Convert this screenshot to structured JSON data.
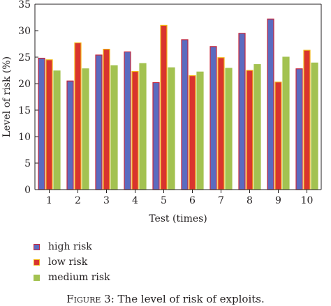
{
  "chart_data": {
    "type": "bar",
    "title": "",
    "xlabel": "Test (times)",
    "ylabel": "Level of risk (%)",
    "ylim": [
      0,
      35
    ],
    "yticks": [
      0,
      5,
      10,
      15,
      20,
      25,
      30,
      35
    ],
    "categories": [
      "1",
      "2",
      "3",
      "4",
      "5",
      "6",
      "7",
      "8",
      "9",
      "10"
    ],
    "grid": false,
    "legend_position": "bottom-left",
    "series": [
      {
        "name": "high risk",
        "fill": "#5b6bc0",
        "stroke": "#c8273c",
        "values": [
          24.8,
          20.5,
          25.4,
          26.0,
          20.2,
          28.3,
          27.0,
          29.5,
          32.2,
          22.8
        ]
      },
      {
        "name": "low risk",
        "fill": "#d9342e",
        "stroke": "#f2b514",
        "values": [
          24.5,
          27.7,
          26.5,
          22.3,
          31.0,
          21.5,
          24.9,
          22.5,
          20.3,
          26.3
        ]
      },
      {
        "name": "medium risk",
        "fill": "#a3c251",
        "stroke": "#a3c251",
        "values": [
          22.4,
          22.8,
          23.4,
          23.8,
          23.0,
          22.2,
          22.9,
          23.6,
          25.0,
          23.9
        ]
      }
    ]
  },
  "caption": {
    "label": "Figure 3:",
    "text": "The level of risk of exploits."
  }
}
